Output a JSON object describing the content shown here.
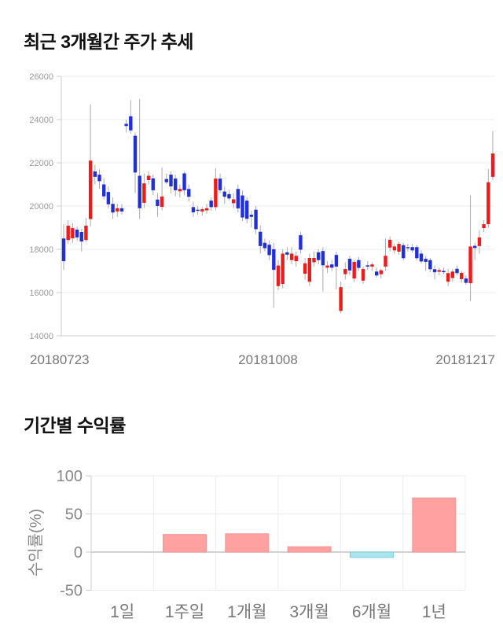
{
  "chart_data": [
    {
      "type": "candlestick",
      "title": "최근 3개월간 주가 추세",
      "y_ticks": [
        26000,
        24000,
        22000,
        20000,
        18000,
        16000,
        14000
      ],
      "ylim": [
        14000,
        26000
      ],
      "x_axis_labels": [
        "20180723",
        "20181008",
        "20181217"
      ],
      "grid": "horizontal",
      "up_color": "#ee1b1b",
      "down_color": "#2130d5",
      "wick_color": "#aaaaaa",
      "candles": [
        [
          18500,
          19150,
          17050,
          17450
        ],
        [
          18430,
          19350,
          18250,
          19090
        ],
        [
          18510,
          19200,
          18300,
          18980
        ],
        [
          18910,
          19050,
          18400,
          18550
        ],
        [
          18800,
          18950,
          17900,
          18360
        ],
        [
          18430,
          19460,
          18350,
          19090
        ],
        [
          19400,
          24700,
          19050,
          22100
        ],
        [
          21600,
          21900,
          21000,
          21350
        ],
        [
          21450,
          21700,
          20800,
          21150
        ],
        [
          21000,
          21300,
          20300,
          20450
        ],
        [
          20650,
          20900,
          19900,
          20080
        ],
        [
          20100,
          20400,
          19400,
          19700
        ],
        [
          19750,
          20100,
          19500,
          19900
        ],
        [
          19900,
          20100,
          19600,
          19750
        ],
        [
          23800,
          24000,
          23400,
          23700
        ],
        [
          24150,
          24900,
          23350,
          23500
        ],
        [
          23250,
          23400,
          20600,
          21550
        ],
        [
          21400,
          24950,
          19400,
          19900
        ],
        [
          20150,
          21500,
          19900,
          21050
        ],
        [
          21200,
          21600,
          21000,
          21400
        ],
        [
          21280,
          21450,
          20500,
          20730
        ],
        [
          20300,
          20600,
          19500,
          20000
        ],
        [
          19960,
          21780,
          19800,
          20440
        ],
        [
          21250,
          21500,
          21000,
          21100
        ],
        [
          21450,
          21600,
          20600,
          20910
        ],
        [
          21270,
          21450,
          20450,
          20730
        ],
        [
          20680,
          21000,
          20400,
          20790
        ],
        [
          21510,
          21600,
          20500,
          20730
        ],
        [
          20790,
          21000,
          20200,
          20430
        ],
        [
          19950,
          20200,
          19500,
          19710
        ],
        [
          19830,
          20000,
          19600,
          19820
        ],
        [
          19750,
          19950,
          19550,
          19850
        ],
        [
          19800,
          20100,
          19650,
          19900
        ],
        [
          20250,
          20400,
          19800,
          19950
        ],
        [
          19950,
          21750,
          19800,
          21270
        ],
        [
          21270,
          21500,
          20600,
          20730
        ],
        [
          20670,
          20900,
          20100,
          20430
        ],
        [
          20550,
          20750,
          20250,
          20350
        ],
        [
          20130,
          20600,
          19900,
          20310
        ],
        [
          20790,
          21000,
          19700,
          19890
        ],
        [
          20490,
          20700,
          19300,
          19470
        ],
        [
          20250,
          20400,
          19200,
          19410
        ],
        [
          19600,
          19800,
          19000,
          19500
        ],
        [
          19830,
          20000,
          18700,
          18930
        ],
        [
          18810,
          19100,
          17800,
          18150
        ],
        [
          18300,
          18500,
          17900,
          18050
        ],
        [
          18210,
          18400,
          17500,
          17730
        ],
        [
          18000,
          18300,
          15300,
          17050
        ],
        [
          16300,
          17500,
          16100,
          17250
        ],
        [
          16400,
          18000,
          16200,
          17800
        ],
        [
          17860,
          18100,
          17500,
          17750
        ],
        [
          17500,
          18100,
          17300,
          17800
        ],
        [
          17450,
          17900,
          17200,
          17700
        ],
        [
          18650,
          18800,
          17800,
          17980
        ],
        [
          16870,
          17600,
          16600,
          17350
        ],
        [
          16500,
          17800,
          16300,
          17600
        ],
        [
          17400,
          17900,
          17200,
          17600
        ],
        [
          17860,
          18000,
          17300,
          17500
        ],
        [
          17920,
          18100,
          16050,
          17260
        ],
        [
          17150,
          17450,
          16900,
          17250
        ],
        [
          17300,
          17500,
          17000,
          17150
        ],
        [
          17740,
          17900,
          16150,
          17200
        ],
        [
          15150,
          16500,
          15050,
          16250
        ],
        [
          16850,
          17400,
          16600,
          17090
        ],
        [
          17560,
          17700,
          16800,
          17020
        ],
        [
          16650,
          17500,
          16500,
          17420
        ],
        [
          17500,
          17650,
          17000,
          17140
        ],
        [
          16550,
          17200,
          16400,
          17090
        ],
        [
          17260,
          17450,
          17050,
          17200
        ],
        [
          17200,
          17400,
          17000,
          17300
        ],
        [
          16970,
          17150,
          16700,
          16790
        ],
        [
          16850,
          17100,
          16650,
          17030
        ],
        [
          17200,
          18500,
          17000,
          17700
        ],
        [
          18080,
          18600,
          17900,
          18440
        ],
        [
          17950,
          18250,
          17800,
          18130
        ],
        [
          17890,
          18350,
          17750,
          18250
        ],
        [
          18190,
          18300,
          17500,
          17590
        ],
        [
          18100,
          18250,
          17900,
          18050
        ],
        [
          18100,
          18250,
          17850,
          17950
        ],
        [
          18100,
          18200,
          17500,
          17590
        ],
        [
          17800,
          17950,
          17350,
          17440
        ],
        [
          17560,
          17700,
          17000,
          17420
        ],
        [
          17500,
          17600,
          16950,
          17080
        ],
        [
          17080,
          17250,
          16600,
          16940
        ],
        [
          16960,
          17150,
          16800,
          17040
        ],
        [
          17000,
          17150,
          16850,
          16940
        ],
        [
          16500,
          17100,
          16300,
          16900
        ],
        [
          16670,
          17100,
          16500,
          16970
        ],
        [
          17100,
          17250,
          16800,
          16900
        ],
        [
          16620,
          17000,
          16450,
          16910
        ],
        [
          16650,
          16800,
          16350,
          16450
        ],
        [
          16430,
          20500,
          15600,
          18130
        ],
        [
          18160,
          18300,
          17500,
          18060
        ],
        [
          18150,
          18870,
          17790,
          18550
        ],
        [
          18980,
          19340,
          18800,
          19160
        ],
        [
          19160,
          21710,
          19000,
          21100
        ],
        [
          21350,
          23470,
          21200,
          22430
        ]
      ]
    },
    {
      "type": "bar",
      "title": "기간별 수익률",
      "ylabel": "수익률(%)",
      "y_ticks": [
        100,
        50,
        0,
        -50
      ],
      "ylim": [
        -50,
        100
      ],
      "categories": [
        "1일",
        "1주일",
        "1개월",
        "3개월",
        "6개월",
        "1년"
      ],
      "values": [
        0,
        23,
        24,
        7,
        -7,
        71
      ],
      "positive_color": "#ffa1a1",
      "positive_border": "#f09595",
      "negative_color": "#aae4f1",
      "negative_border": "#83ccdc",
      "grid": "both"
    }
  ],
  "colors": {
    "grid_line": "#ececec",
    "axis_line": "#cccccc",
    "zero_line": "#c4c4c4",
    "price_tick_text": "#999999",
    "price_xlabel_text": "#777777",
    "returns_tick_text": "#888888",
    "category_text": "#777777"
  }
}
